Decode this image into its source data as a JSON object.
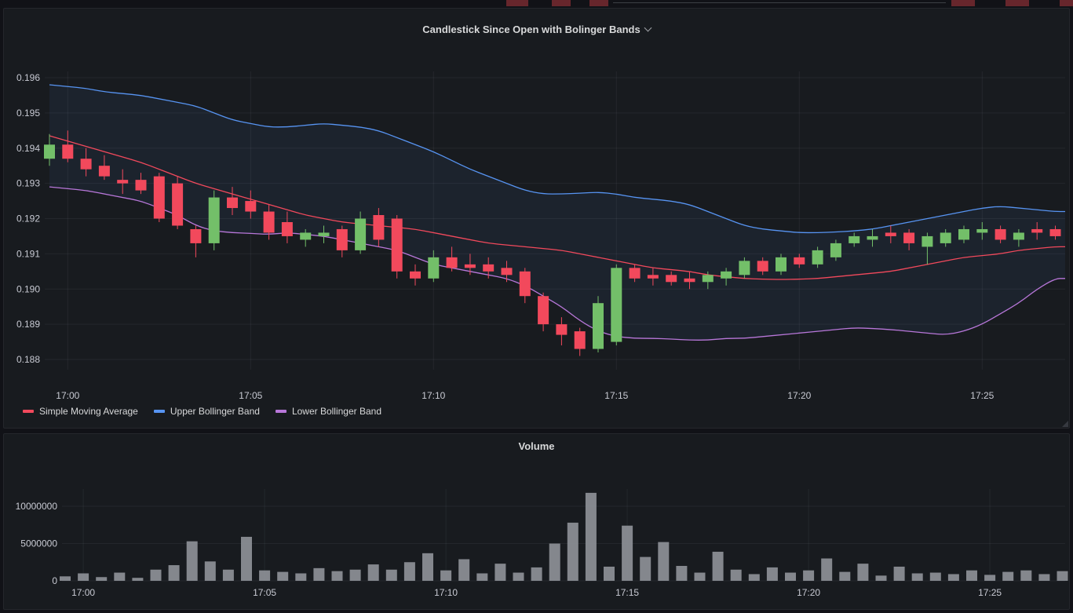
{
  "colors": {
    "page_bg": "#111217",
    "panel_bg": "#181b1f",
    "panel_border": "#25272c",
    "title_text": "#d8d9da"
  },
  "header": {
    "fragment_color": "#67262c",
    "line_color": "#3c3f45"
  },
  "icons": {
    "panel_menu_icon": "chevron-down-icon"
  },
  "panels": [
    {
      "title": "Candlestick Since Open with Bolinger Bands"
    },
    {
      "title": "Volume"
    }
  ],
  "legend": [
    {
      "label": "Simple Moving Average",
      "color": "#f2495c"
    },
    {
      "label": "Upper Bollinger Band",
      "color": "#5794f2"
    },
    {
      "label": "Lower Bollinger Band",
      "color": "#b877d9"
    }
  ],
  "chart_data": [
    {
      "type": "candlestick",
      "title": "Candlestick Since Open with Bolinger Bands",
      "x_tick_labels": [
        "17:00",
        "17:05",
        "17:10",
        "17:15",
        "17:20",
        "17:25"
      ],
      "x_tick_indices": [
        1,
        11,
        21,
        31,
        41,
        51
      ],
      "y_ticks": [
        0.188,
        0.189,
        0.19,
        0.191,
        0.192,
        0.193,
        0.194,
        0.195,
        0.196
      ],
      "ylim": [
        0.1876,
        0.1964
      ],
      "grid_on": true,
      "legend_position": "bottom-left",
      "candles": [
        [
          0.1937,
          0.1944,
          0.1935,
          0.1941
        ],
        [
          0.1941,
          0.1945,
          0.1936,
          0.1937
        ],
        [
          0.1937,
          0.194,
          0.1932,
          0.1934
        ],
        [
          0.1935,
          0.1938,
          0.1931,
          0.1932
        ],
        [
          0.1931,
          0.1934,
          0.1927,
          0.193
        ],
        [
          0.1931,
          0.1933,
          0.1927,
          0.1928
        ],
        [
          0.1932,
          0.1933,
          0.1919,
          0.192
        ],
        [
          0.193,
          0.1932,
          0.1917,
          0.1918
        ],
        [
          0.1917,
          0.1918,
          0.1909,
          0.1913
        ],
        [
          0.1913,
          0.1928,
          0.1911,
          0.1926
        ],
        [
          0.1926,
          0.1929,
          0.1921,
          0.1923
        ],
        [
          0.1925,
          0.1928,
          0.192,
          0.1922
        ],
        [
          0.1922,
          0.1924,
          0.1914,
          0.1916
        ],
        [
          0.1919,
          0.1922,
          0.1913,
          0.1915
        ],
        [
          0.1914,
          0.1917,
          0.1912,
          0.1916
        ],
        [
          0.1915,
          0.1918,
          0.1913,
          0.1916
        ],
        [
          0.1917,
          0.1918,
          0.1909,
          0.1911
        ],
        [
          0.1911,
          0.1922,
          0.191,
          0.192
        ],
        [
          0.1921,
          0.1923,
          0.1912,
          0.1914
        ],
        [
          0.192,
          0.1921,
          0.1903,
          0.1905
        ],
        [
          0.1905,
          0.1907,
          0.1901,
          0.1903
        ],
        [
          0.1903,
          0.1911,
          0.1902,
          0.1909
        ],
        [
          0.1909,
          0.1912,
          0.1905,
          0.1906
        ],
        [
          0.1907,
          0.191,
          0.1904,
          0.1906
        ],
        [
          0.1907,
          0.1909,
          0.1903,
          0.1905
        ],
        [
          0.1906,
          0.1908,
          0.1902,
          0.1904
        ],
        [
          0.1905,
          0.1906,
          0.1896,
          0.1898
        ],
        [
          0.1898,
          0.1899,
          0.1888,
          0.189
        ],
        [
          0.189,
          0.1892,
          0.1884,
          0.1887
        ],
        [
          0.1888,
          0.1889,
          0.1881,
          0.1883
        ],
        [
          0.1883,
          0.1898,
          0.1882,
          0.1896
        ],
        [
          0.1885,
          0.1907,
          0.1884,
          0.1906
        ],
        [
          0.1906,
          0.1907,
          0.1902,
          0.1903
        ],
        [
          0.1904,
          0.1906,
          0.1901,
          0.1903
        ],
        [
          0.1904,
          0.1905,
          0.1901,
          0.1902
        ],
        [
          0.1903,
          0.1905,
          0.19,
          0.1902
        ],
        [
          0.1902,
          0.1905,
          0.19,
          0.1904
        ],
        [
          0.1903,
          0.1906,
          0.1901,
          0.1905
        ],
        [
          0.1904,
          0.1909,
          0.1903,
          0.1908
        ],
        [
          0.1908,
          0.1909,
          0.1904,
          0.1905
        ],
        [
          0.1905,
          0.191,
          0.1904,
          0.1909
        ],
        [
          0.1909,
          0.191,
          0.1906,
          0.1907
        ],
        [
          0.1907,
          0.1912,
          0.1906,
          0.1911
        ],
        [
          0.1909,
          0.1914,
          0.1908,
          0.1913
        ],
        [
          0.1913,
          0.1916,
          0.1912,
          0.1915
        ],
        [
          0.1914,
          0.1917,
          0.1912,
          0.1915
        ],
        [
          0.1916,
          0.1918,
          0.1913,
          0.1915
        ],
        [
          0.1916,
          0.1917,
          0.1911,
          0.1913
        ],
        [
          0.1912,
          0.1916,
          0.1907,
          0.1915
        ],
        [
          0.1913,
          0.1917,
          0.1912,
          0.1916
        ],
        [
          0.1914,
          0.1918,
          0.1913,
          0.1917
        ],
        [
          0.1916,
          0.1919,
          0.1914,
          0.1917
        ],
        [
          0.1917,
          0.1918,
          0.1913,
          0.1914
        ],
        [
          0.1914,
          0.1917,
          0.1912,
          0.1916
        ],
        [
          0.1917,
          0.1919,
          0.1914,
          0.1916
        ],
        [
          0.1917,
          0.1918,
          0.1914,
          0.1915
        ]
      ],
      "series": [
        {
          "name": "Simple Moving Average",
          "color": "#f2495c",
          "values": [
            0.19435,
            0.1942,
            0.19405,
            0.1939,
            0.19375,
            0.1936,
            0.1934,
            0.1932,
            0.193,
            0.19285,
            0.1927,
            0.19255,
            0.1924,
            0.19225,
            0.1921,
            0.192,
            0.1919,
            0.19185,
            0.1918,
            0.19175,
            0.1917,
            0.1916,
            0.1915,
            0.1914,
            0.1913,
            0.19125,
            0.1912,
            0.19115,
            0.1911,
            0.191,
            0.1909,
            0.1908,
            0.1907,
            0.1906,
            0.19055,
            0.1905,
            0.1904,
            0.19035,
            0.1903,
            0.19028,
            0.19027,
            0.19028,
            0.1903,
            0.19035,
            0.1904,
            0.19045,
            0.1905,
            0.1906,
            0.1907,
            0.1908,
            0.1909,
            0.19095,
            0.191,
            0.1911,
            0.19115,
            0.1912
          ]
        },
        {
          "name": "Upper Bollinger Band",
          "color": "#5794f2",
          "values": [
            0.1958,
            0.19575,
            0.1957,
            0.1956,
            0.19555,
            0.1955,
            0.1954,
            0.1953,
            0.1952,
            0.195,
            0.1948,
            0.1947,
            0.1946,
            0.1946,
            0.19465,
            0.1947,
            0.19465,
            0.1946,
            0.1945,
            0.1943,
            0.1941,
            0.1939,
            0.19365,
            0.1934,
            0.1932,
            0.193,
            0.1928,
            0.1927,
            0.1927,
            0.19272,
            0.19275,
            0.1927,
            0.1926,
            0.19255,
            0.1925,
            0.1924,
            0.1922,
            0.192,
            0.1918,
            0.1917,
            0.19165,
            0.1916,
            0.1916,
            0.19162,
            0.19165,
            0.1917,
            0.1918,
            0.1919,
            0.192,
            0.1921,
            0.1922,
            0.1923,
            0.19235,
            0.1923,
            0.19225,
            0.1922
          ]
        },
        {
          "name": "Lower Bollinger Band",
          "color": "#b877d9",
          "values": [
            0.1929,
            0.19285,
            0.1928,
            0.1927,
            0.1926,
            0.1925,
            0.1923,
            0.1921,
            0.1918,
            0.19165,
            0.1916,
            0.19158,
            0.19155,
            0.1916,
            0.19155,
            0.1915,
            0.1914,
            0.1913,
            0.1912,
            0.1911,
            0.1909,
            0.1907,
            0.1906,
            0.1905,
            0.1904,
            0.1903,
            0.1901,
            0.1898,
            0.1895,
            0.1891,
            0.1888,
            0.18865,
            0.1886,
            0.1886,
            0.18858,
            0.18855,
            0.18855,
            0.1886,
            0.1886,
            0.18865,
            0.1887,
            0.18875,
            0.1888,
            0.18885,
            0.1889,
            0.18888,
            0.18885,
            0.1888,
            0.18875,
            0.1887,
            0.1888,
            0.189,
            0.1893,
            0.1896,
            0.19,
            0.1903
          ]
        }
      ],
      "colors": {
        "up": "#73bf69",
        "down": "#f2495c",
        "band_fill": "rgba(87,148,242,0.07)",
        "grid": "rgba(204,204,220,0.07)",
        "tick_text": "#c8cad3"
      }
    },
    {
      "type": "bar",
      "title": "Volume",
      "x_tick_labels": [
        "17:00",
        "17:05",
        "17:10",
        "17:15",
        "17:20",
        "17:25"
      ],
      "x_tick_indices": [
        1,
        11,
        21,
        31,
        41,
        51
      ],
      "y_ticks": [
        0,
        5000000,
        10000000
      ],
      "ylim": [
        0,
        12000000
      ],
      "grid_on": true,
      "values": [
        600000,
        1000000,
        500000,
        1100000,
        400000,
        1500000,
        2100000,
        5300000,
        2600000,
        1500000,
        5900000,
        1400000,
        1200000,
        1000000,
        1700000,
        1300000,
        1500000,
        2200000,
        1500000,
        2500000,
        3700000,
        1400000,
        2900000,
        1000000,
        2300000,
        1100000,
        1800000,
        5000000,
        7800000,
        11800000,
        1900000,
        7400000,
        3200000,
        5200000,
        2000000,
        1100000,
        3900000,
        1500000,
        900000,
        1800000,
        1100000,
        1400000,
        3000000,
        1200000,
        2300000,
        700000,
        1900000,
        1000000,
        1100000,
        900000,
        1400000,
        800000,
        1200000,
        1400000,
        900000,
        1300000
      ],
      "bar_color": "#8a8d94",
      "grid": "rgba(204,204,220,0.07)",
      "tick_text": "#c8cad3"
    }
  ]
}
